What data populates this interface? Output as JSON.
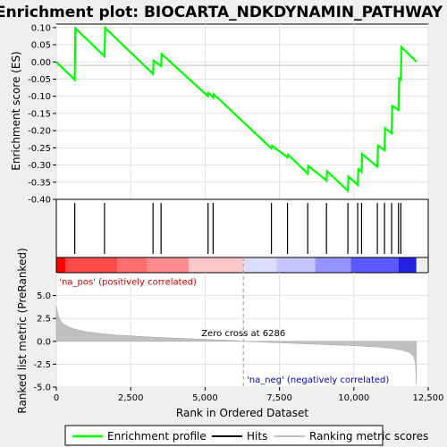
{
  "chart_data": [
    {
      "type": "line",
      "title": "Enrichment plot: BIOCARTA_NDKDYNAMIN_PATHWAY",
      "ylabel": "Enrichment score (ES)",
      "ylim": [
        -0.4,
        0.11
      ],
      "yticks": [
        0.1,
        0.05,
        0.0,
        -0.05,
        -0.1,
        -0.15,
        -0.2,
        -0.25,
        -0.3,
        -0.35,
        -0.4
      ],
      "ytick_labels": [
        "0.10",
        "0.05",
        "0.00",
        "-0.05",
        "-0.10",
        "-0.15",
        "-0.20",
        "-0.25",
        "-0.30",
        "-0.35",
        "-0.40"
      ],
      "xlim": [
        0,
        12500
      ],
      "grid": true,
      "series": [
        {
          "name": "Enrichment profile",
          "color": "#00ff00",
          "x": [
            0,
            620,
            640,
            1620,
            1640,
            3250,
            3270,
            3520,
            3540,
            5100,
            5120,
            5270,
            5290,
            7230,
            7250,
            7770,
            7790,
            8450,
            8470,
            9080,
            9100,
            9800,
            9820,
            10130,
            10150,
            10260,
            10280,
            10790,
            10810,
            11030,
            11050,
            11270,
            11290,
            11500,
            11520,
            11580,
            11600,
            12100
          ],
          "y": [
            0.0,
            -0.052,
            0.098,
            0.016,
            0.099,
            -0.035,
            0.004,
            -0.012,
            0.023,
            -0.1,
            -0.09,
            -0.104,
            -0.094,
            -0.252,
            -0.244,
            -0.278,
            -0.27,
            -0.325,
            -0.303,
            -0.345,
            -0.318,
            -0.375,
            -0.333,
            -0.358,
            -0.312,
            -0.32,
            -0.268,
            -0.305,
            -0.243,
            -0.257,
            -0.193,
            -0.208,
            -0.128,
            -0.14,
            -0.048,
            -0.052,
            0.043,
            0.001
          ]
        }
      ]
    },
    {
      "type": "scatter",
      "name": "Hits",
      "xlim": [
        0,
        12500
      ],
      "x": [
        620,
        1620,
        3250,
        3520,
        5100,
        5270,
        7230,
        7770,
        8450,
        9080,
        9800,
        10130,
        10260,
        10790,
        11030,
        11270,
        11500,
        11580
      ],
      "color": "#000000"
    },
    {
      "type": "heatmap",
      "name": "ranked list color bar",
      "xlim": [
        0,
        12500
      ],
      "x_end": 12100,
      "zero_cross": 6286,
      "segments": [
        {
          "from": 0,
          "to": 300,
          "color": "#ff0000"
        },
        {
          "from": 300,
          "to": 2050,
          "color": "#ff4a4a"
        },
        {
          "from": 2050,
          "to": 3050,
          "color": "#ff6e6e"
        },
        {
          "from": 3050,
          "to": 4450,
          "color": "#ff8c8c"
        },
        {
          "from": 4450,
          "to": 6300,
          "color": "#ffc8c8"
        },
        {
          "from": 6300,
          "to": 7400,
          "color": "#dcdcff"
        },
        {
          "from": 7400,
          "to": 8700,
          "color": "#c6c6ff"
        },
        {
          "from": 8700,
          "to": 9900,
          "color": "#9494ff"
        },
        {
          "from": 9900,
          "to": 11500,
          "color": "#5a5aff"
        },
        {
          "from": 11500,
          "to": 12100,
          "color": "#2222e0"
        }
      ]
    },
    {
      "type": "area",
      "name": "Ranking metric scores",
      "xlabel": "Rank in Ordered Dataset",
      "ylabel": "Ranked list metric (PreRanked)",
      "xlim": [
        0,
        12500
      ],
      "ylim": [
        -5.0,
        7.5
      ],
      "xticks": [
        0,
        2500,
        5000,
        7500,
        10000,
        12500
      ],
      "xtick_labels": [
        "0",
        "2,500",
        "5,000",
        "7,500",
        "10,000",
        "12,500"
      ],
      "yticks": [
        5.0,
        2.5,
        0.0,
        -2.5,
        -5.0
      ],
      "ytick_labels": [
        "5.0",
        "2.5",
        "0.0",
        "-2.5",
        "-5.0"
      ],
      "x": [
        0,
        30,
        100,
        200,
        400,
        600,
        1000,
        1500,
        2000,
        3000,
        4000,
        5000,
        6000,
        6286,
        7000,
        8000,
        9000,
        10000,
        10800,
        11300,
        11600,
        11850,
        12000,
        12070,
        12100
      ],
      "y": [
        3.9,
        3.3,
        2.5,
        2.0,
        1.6,
        1.35,
        1.05,
        0.85,
        0.7,
        0.5,
        0.35,
        0.22,
        0.08,
        0.0,
        -0.1,
        -0.22,
        -0.35,
        -0.48,
        -0.62,
        -0.78,
        -0.95,
        -1.2,
        -1.6,
        -2.3,
        -4.7
      ],
      "color": "#c0c0c0",
      "annotations": [
        {
          "text": "'na_pos' (positively correlated)",
          "x": 100,
          "y": 6.2,
          "color": "#cc0000"
        },
        {
          "text": "Zero cross at 6286",
          "x": 6286,
          "y": 0.55,
          "color": "#000000"
        },
        {
          "text": "'na_neg' (negatively correlated)",
          "x": 6400,
          "y": -4.5,
          "color": "#0000cc"
        }
      ]
    }
  ],
  "legend": {
    "items": [
      {
        "label": "Enrichment profile",
        "color": "#00ff00"
      },
      {
        "label": "Hits",
        "color": "#000000"
      },
      {
        "label": "Ranking metric scores",
        "color": "#c0c0c0"
      }
    ]
  }
}
